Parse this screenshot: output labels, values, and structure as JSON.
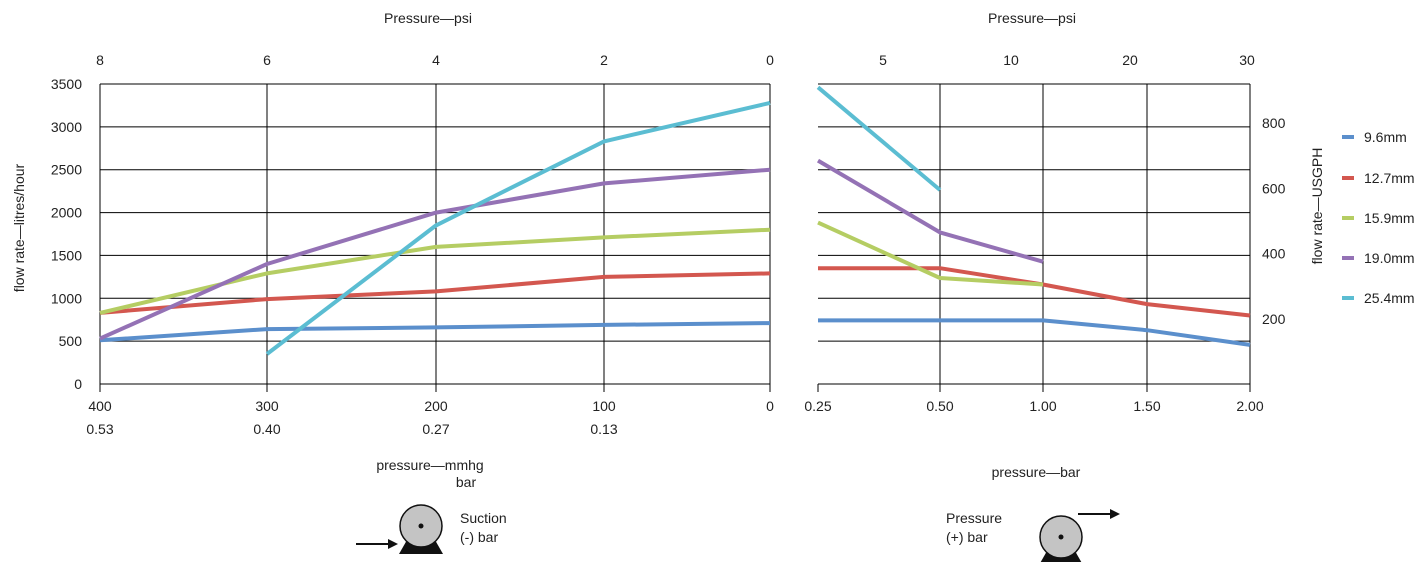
{
  "colors": {
    "9.6mm": "#5b8fcc",
    "12.7mm": "#d3574f",
    "15.9mm": "#b5cd63",
    "19.0mm": "#9472b5",
    "25.4mm": "#5bbdd2"
  },
  "chart_data": [
    {
      "type": "line",
      "title": "",
      "top_axis": {
        "label": "Pressure—psi",
        "ticks": [
          "8",
          "6",
          "4",
          "2",
          "0"
        ]
      },
      "bottom_axis": {
        "label_line1": "pressure—mmhg",
        "label_line2": "bar",
        "ticks_mmhg": [
          "400",
          "300",
          "200",
          "100",
          "0"
        ],
        "ticks_bar": [
          "0.53",
          "0.40",
          "0.27",
          "0.13",
          ""
        ]
      },
      "x": [
        400,
        300,
        200,
        100,
        0
      ],
      "xlim": [
        400,
        0
      ],
      "ylabel": "flow rate—litres/hour",
      "ylim": [
        0,
        3500
      ],
      "yticks": [
        "0",
        "500",
        "1000",
        "1500",
        "2000",
        "2500",
        "3000",
        "3500"
      ],
      "grid": true,
      "series": [
        {
          "name": "9.6mm",
          "values": [
            510,
            640,
            660,
            690,
            710
          ]
        },
        {
          "name": "12.7mm",
          "values": [
            830,
            990,
            1080,
            1250,
            1290
          ]
        },
        {
          "name": "15.9mm",
          "values": [
            830,
            1290,
            1600,
            1710,
            1800
          ]
        },
        {
          "name": "19.0mm",
          "values": [
            530,
            1400,
            2000,
            2340,
            2500
          ]
        },
        {
          "name": "25.4mm",
          "values": [
            null,
            350,
            1850,
            2830,
            3280
          ]
        }
      ],
      "note": {
        "line1": "Suction",
        "line2": "(-) bar"
      }
    },
    {
      "type": "line",
      "title": "",
      "top_axis": {
        "label": "Pressure—psi",
        "ticks": [
          "5",
          "10",
          "20",
          "30"
        ]
      },
      "bottom_axis": {
        "label": "pressure—bar",
        "ticks": [
          "0.25",
          "0.50",
          "1.00",
          "1.50",
          "2.00"
        ]
      },
      "x": [
        0.25,
        0.5,
        1.0,
        1.5,
        2.0
      ],
      "xlim": [
        0.25,
        2.0
      ],
      "ylabel": "flow rate—USGPH",
      "ylim": [
        0,
        920
      ],
      "yticks": [
        "200",
        "400",
        "600",
        "800"
      ],
      "grid": true,
      "series": [
        {
          "name": "9.6mm",
          "values": [
            195,
            195,
            195,
            165,
            120
          ]
        },
        {
          "name": "12.7mm",
          "values": [
            355,
            355,
            305,
            245,
            210
          ]
        },
        {
          "name": "15.9mm",
          "values": [
            495,
            325,
            305,
            null,
            null
          ]
        },
        {
          "name": "19.0mm",
          "values": [
            685,
            465,
            375,
            null,
            null
          ]
        },
        {
          "name": "25.4mm",
          "values": [
            910,
            595,
            null,
            null,
            null
          ]
        }
      ],
      "note": {
        "line1": "Pressure",
        "line2": "(+) bar"
      }
    }
  ],
  "legend": {
    "placement": "right",
    "items": [
      "9.6mm",
      "12.7mm",
      "15.9mm",
      "19.0mm",
      "25.4mm"
    ]
  }
}
